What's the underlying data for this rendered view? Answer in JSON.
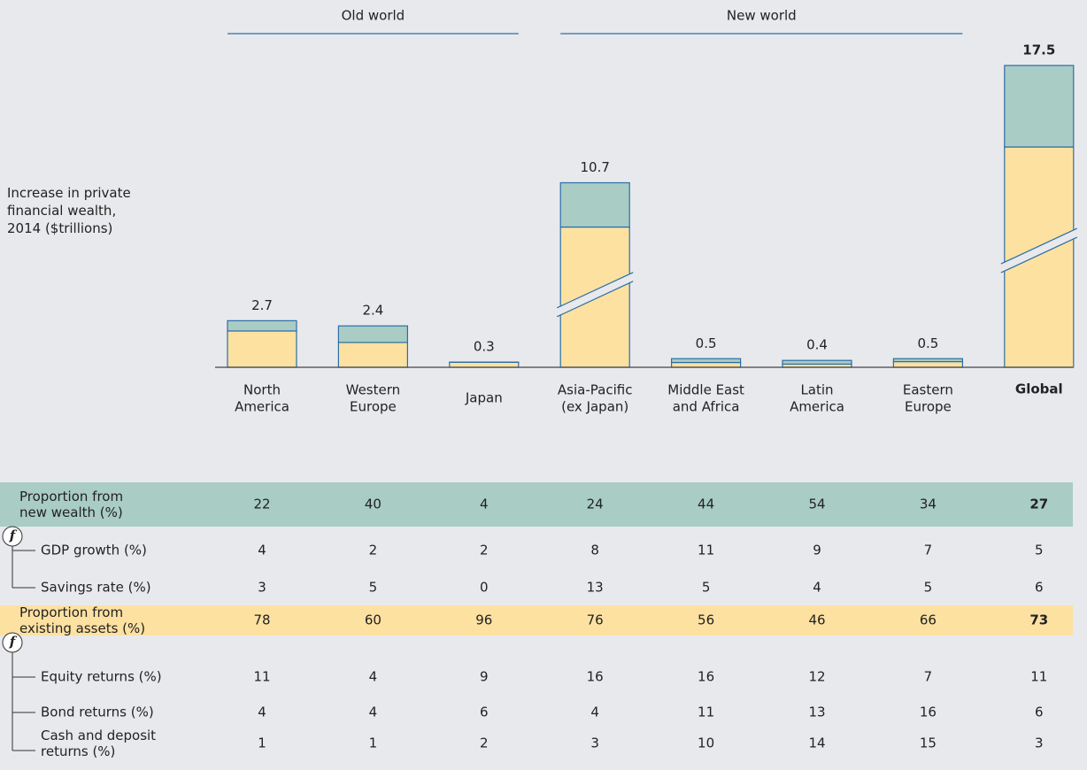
{
  "chart_data": {
    "type": "bar",
    "y_label": "Increase in private\nfinancial wealth,\n2014 ($trillions)",
    "categories": [
      "North\nAmerica",
      "Western\nEurope",
      "Japan",
      "Asia-Pacific\n(ex Japan)",
      "Middle East\nand Africa",
      "Latin\nAmerica",
      "Eastern\nEurope",
      "Global"
    ],
    "values": [
      2.7,
      2.4,
      0.3,
      10.7,
      0.5,
      0.4,
      0.5,
      17.5
    ],
    "broken": [
      false,
      false,
      false,
      true,
      false,
      false,
      false,
      true
    ],
    "emphasis_last": true,
    "colors": {
      "new": "#a9ccc5",
      "existing": "#fde1a1",
      "edge": "#2b6ea6"
    },
    "groups": [
      {
        "label": "Old world",
        "start": 0,
        "end": 2
      },
      {
        "label": "New world",
        "start": 3,
        "end": 6
      }
    ]
  },
  "table": {
    "symbol": "f",
    "rows": [
      {
        "label": "Proportion from\nnew wealth (%)",
        "kind": "band-new",
        "values": [
          22,
          40,
          4,
          24,
          44,
          54,
          34,
          27
        ]
      },
      {
        "label": "GDP growth (%)",
        "kind": "sub",
        "values": [
          4,
          2,
          2,
          8,
          11,
          9,
          7,
          5
        ]
      },
      {
        "label": "Savings rate (%)",
        "kind": "sub",
        "values": [
          3,
          5,
          0,
          13,
          5,
          4,
          5,
          6
        ]
      },
      {
        "label": "Proportion from\nexisting assets (%)",
        "kind": "band-existing",
        "values": [
          78,
          60,
          96,
          76,
          56,
          46,
          66,
          73
        ]
      },
      {
        "label": "Equity returns (%)",
        "kind": "sub",
        "values": [
          11,
          4,
          9,
          16,
          16,
          12,
          7,
          11
        ]
      },
      {
        "label": "Bond returns (%)",
        "kind": "sub",
        "values": [
          4,
          4,
          6,
          4,
          11,
          13,
          16,
          6
        ]
      },
      {
        "label": "Cash and deposit\nreturns (%)",
        "kind": "sub",
        "values": [
          1,
          1,
          2,
          3,
          10,
          14,
          15,
          3
        ]
      }
    ]
  }
}
